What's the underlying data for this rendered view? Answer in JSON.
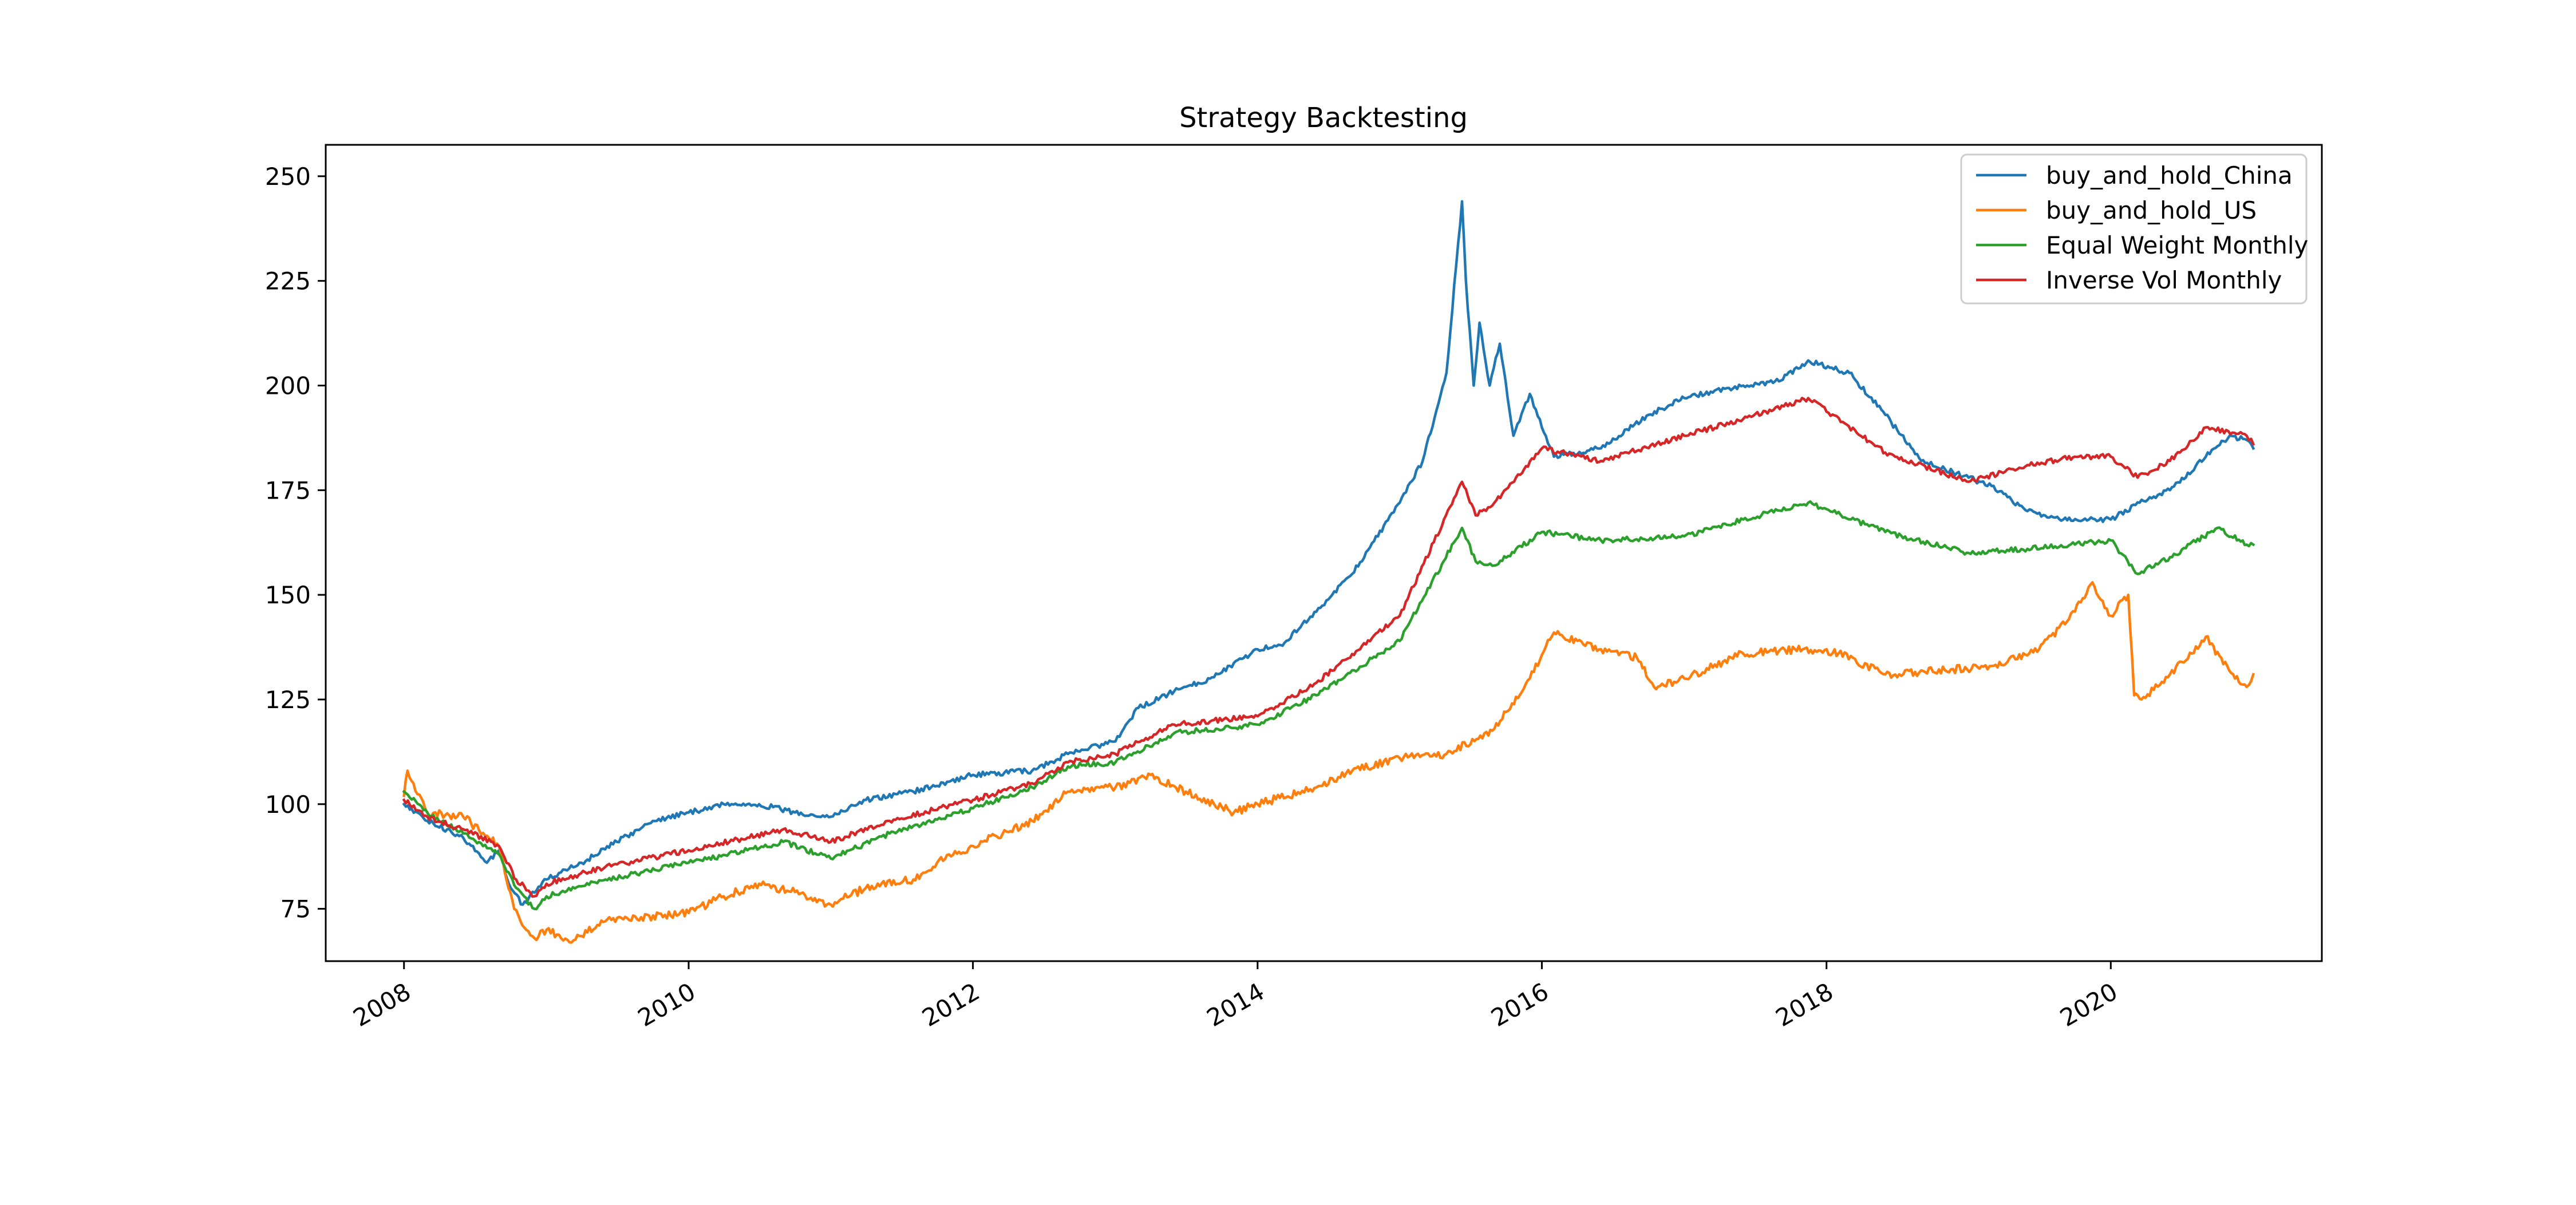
{
  "chart_data": {
    "type": "line",
    "title": "Strategy Backtesting",
    "xlabel": "",
    "ylabel": "",
    "x_range": [
      "2007-06-14",
      "2021-06-26"
    ],
    "ylim": [
      62.5,
      257.5
    ],
    "x_ticks": [
      "2008",
      "2010",
      "2012",
      "2014",
      "2016",
      "2018",
      "2020"
    ],
    "y_ticks": [
      "75",
      "100",
      "125",
      "150",
      "175",
      "200",
      "225",
      "250"
    ],
    "grid": false,
    "legend_position": "upper right",
    "series": [
      {
        "name": "buy_and_hold_China",
        "color": "#1f77b4",
        "points": [
          [
            "2008-01-01",
            100
          ],
          [
            "2008-03-01",
            96
          ],
          [
            "2008-06-01",
            92
          ],
          [
            "2008-08-01",
            86
          ],
          [
            "2008-09-01",
            89
          ],
          [
            "2008-10-01",
            80
          ],
          [
            "2008-11-01",
            76
          ],
          [
            "2009-01-01",
            82
          ],
          [
            "2009-04-01",
            86
          ],
          [
            "2009-07-01",
            91
          ],
          [
            "2009-10-01",
            96
          ],
          [
            "2010-01-01",
            98
          ],
          [
            "2010-04-01",
            100
          ],
          [
            "2010-07-01",
            100
          ],
          [
            "2010-10-01",
            98
          ],
          [
            "2011-01-01",
            97
          ],
          [
            "2011-04-01",
            101
          ],
          [
            "2011-08-01",
            103
          ],
          [
            "2012-01-01",
            107
          ],
          [
            "2012-06-01",
            108
          ],
          [
            "2012-09-01",
            112
          ],
          [
            "2013-01-01",
            115
          ],
          [
            "2013-03-01",
            123
          ],
          [
            "2013-06-01",
            127
          ],
          [
            "2013-09-01",
            130
          ],
          [
            "2014-01-01",
            137
          ],
          [
            "2014-03-01",
            138
          ],
          [
            "2014-06-01",
            146
          ],
          [
            "2014-09-01",
            155
          ],
          [
            "2015-01-01",
            172
          ],
          [
            "2015-03-01",
            182
          ],
          [
            "2015-05-01",
            203
          ],
          [
            "2015-06-10",
            244
          ],
          [
            "2015-06-20",
            225
          ],
          [
            "2015-07-10",
            200
          ],
          [
            "2015-07-25",
            215
          ],
          [
            "2015-08-20",
            200
          ],
          [
            "2015-09-15",
            210
          ],
          [
            "2015-10-20",
            188
          ],
          [
            "2015-12-01",
            198
          ],
          [
            "2016-02-01",
            183
          ],
          [
            "2016-06-01",
            185
          ],
          [
            "2016-10-01",
            193
          ],
          [
            "2017-01-01",
            197
          ],
          [
            "2017-06-01",
            200
          ],
          [
            "2017-09-01",
            201
          ],
          [
            "2017-11-15",
            206
          ],
          [
            "2018-03-01",
            203
          ],
          [
            "2018-06-01",
            193
          ],
          [
            "2018-09-01",
            182
          ],
          [
            "2019-01-01",
            178
          ],
          [
            "2019-03-01",
            176
          ],
          [
            "2019-06-01",
            170
          ],
          [
            "2019-09-01",
            168
          ],
          [
            "2020-01-01",
            168
          ],
          [
            "2020-03-15",
            172
          ],
          [
            "2020-06-01",
            175
          ],
          [
            "2020-09-01",
            183
          ],
          [
            "2020-11-01",
            188
          ],
          [
            "2020-12-15",
            187
          ],
          [
            "2021-01-01",
            185
          ]
        ]
      },
      {
        "name": "buy_and_hold_US",
        "color": "#ff7f0e",
        "points": [
          [
            "2008-01-01",
            102
          ],
          [
            "2008-01-10",
            108
          ],
          [
            "2008-03-01",
            98
          ],
          [
            "2008-06-01",
            97
          ],
          [
            "2008-09-01",
            90
          ],
          [
            "2008-10-10",
            75
          ],
          [
            "2008-11-10",
            70
          ],
          [
            "2008-12-01",
            68
          ],
          [
            "2009-01-01",
            70
          ],
          [
            "2009-03-01",
            67
          ],
          [
            "2009-06-01",
            72
          ],
          [
            "2009-09-01",
            73
          ],
          [
            "2010-01-01",
            74
          ],
          [
            "2010-04-01",
            78
          ],
          [
            "2010-07-01",
            81
          ],
          [
            "2010-10-01",
            79
          ],
          [
            "2011-01-01",
            76
          ],
          [
            "2011-04-01",
            80
          ],
          [
            "2011-08-01",
            82
          ],
          [
            "2011-10-01",
            86
          ],
          [
            "2012-01-01",
            90
          ],
          [
            "2012-06-01",
            96
          ],
          [
            "2012-09-01",
            103
          ],
          [
            "2013-01-01",
            104
          ],
          [
            "2013-04-01",
            107
          ],
          [
            "2013-07-01",
            103
          ],
          [
            "2013-11-01",
            98
          ],
          [
            "2014-01-01",
            100
          ],
          [
            "2014-06-01",
            104
          ],
          [
            "2014-09-01",
            108
          ],
          [
            "2015-01-01",
            111
          ],
          [
            "2015-05-01",
            112
          ],
          [
            "2015-09-01",
            118
          ],
          [
            "2015-12-01",
            130
          ],
          [
            "2016-02-01",
            141
          ],
          [
            "2016-06-01",
            137
          ],
          [
            "2016-09-01",
            135
          ],
          [
            "2016-10-15",
            128
          ],
          [
            "2017-01-01",
            130
          ],
          [
            "2017-06-01",
            136
          ],
          [
            "2017-11-01",
            137
          ],
          [
            "2018-02-01",
            136
          ],
          [
            "2018-06-01",
            131
          ],
          [
            "2018-11-01",
            132
          ],
          [
            "2019-03-01",
            133
          ],
          [
            "2019-07-01",
            137
          ],
          [
            "2019-10-01",
            146
          ],
          [
            "2019-11-15",
            153
          ],
          [
            "2020-01-01",
            145
          ],
          [
            "2020-02-15",
            150
          ],
          [
            "2020-03-01",
            126
          ],
          [
            "2020-03-20",
            125
          ],
          [
            "2020-06-01",
            131
          ],
          [
            "2020-09-01",
            140
          ],
          [
            "2020-11-15",
            130
          ],
          [
            "2020-12-15",
            128
          ],
          [
            "2021-01-01",
            131
          ]
        ]
      },
      {
        "name": "Equal Weight Monthly",
        "color": "#2ca02c",
        "points": [
          [
            "2008-01-01",
            103
          ],
          [
            "2008-03-01",
            98
          ],
          [
            "2008-06-01",
            93
          ],
          [
            "2008-09-01",
            88
          ],
          [
            "2008-10-15",
            80
          ],
          [
            "2008-12-01",
            75
          ],
          [
            "2009-01-01",
            78
          ],
          [
            "2009-06-01",
            82
          ],
          [
            "2010-01-01",
            86
          ],
          [
            "2010-06-01",
            89
          ],
          [
            "2010-09-01",
            91
          ],
          [
            "2011-01-01",
            87
          ],
          [
            "2011-06-01",
            93
          ],
          [
            "2012-01-01",
            99
          ],
          [
            "2012-06-01",
            104
          ],
          [
            "2012-09-01",
            109
          ],
          [
            "2013-01-01",
            110
          ],
          [
            "2013-06-01",
            117
          ],
          [
            "2014-01-01",
            119
          ],
          [
            "2014-06-01",
            126
          ],
          [
            "2015-01-01",
            139
          ],
          [
            "2015-06-10",
            166
          ],
          [
            "2015-07-15",
            158
          ],
          [
            "2015-09-01",
            157
          ],
          [
            "2016-01-01",
            165
          ],
          [
            "2016-06-01",
            163
          ],
          [
            "2017-01-01",
            164
          ],
          [
            "2017-06-01",
            168
          ],
          [
            "2017-11-15",
            172
          ],
          [
            "2018-06-01",
            165
          ],
          [
            "2019-01-01",
            160
          ],
          [
            "2019-06-01",
            161
          ],
          [
            "2019-10-01",
            162
          ],
          [
            "2020-01-01",
            163
          ],
          [
            "2020-03-10",
            155
          ],
          [
            "2020-06-01",
            159
          ],
          [
            "2020-10-01",
            166
          ],
          [
            "2020-12-15",
            162
          ],
          [
            "2021-01-01",
            162
          ]
        ]
      },
      {
        "name": "Inverse Vol Monthly",
        "color": "#d62728",
        "points": [
          [
            "2008-01-01",
            101
          ],
          [
            "2008-03-01",
            97
          ],
          [
            "2008-06-01",
            94
          ],
          [
            "2008-09-01",
            90
          ],
          [
            "2008-10-15",
            82
          ],
          [
            "2008-12-01",
            78
          ],
          [
            "2009-01-01",
            81
          ],
          [
            "2009-06-01",
            85
          ],
          [
            "2010-01-01",
            89
          ],
          [
            "2010-06-01",
            92
          ],
          [
            "2010-09-01",
            94
          ],
          [
            "2011-01-01",
            91
          ],
          [
            "2011-06-01",
            96
          ],
          [
            "2012-01-01",
            101
          ],
          [
            "2012-06-01",
            105
          ],
          [
            "2012-09-01",
            110
          ],
          [
            "2013-01-01",
            112
          ],
          [
            "2013-06-01",
            119
          ],
          [
            "2014-01-01",
            121
          ],
          [
            "2014-06-01",
            129
          ],
          [
            "2015-01-01",
            145
          ],
          [
            "2015-06-10",
            177
          ],
          [
            "2015-07-15",
            169
          ],
          [
            "2015-09-01",
            172
          ],
          [
            "2016-01-01",
            185
          ],
          [
            "2016-06-01",
            182
          ],
          [
            "2017-01-01",
            188
          ],
          [
            "2017-06-01",
            192
          ],
          [
            "2017-11-15",
            197
          ],
          [
            "2018-06-01",
            184
          ],
          [
            "2019-01-01",
            177
          ],
          [
            "2019-06-01",
            181
          ],
          [
            "2019-10-01",
            183
          ],
          [
            "2020-01-01",
            183
          ],
          [
            "2020-03-10",
            178
          ],
          [
            "2020-06-01",
            182
          ],
          [
            "2020-09-01",
            190
          ],
          [
            "2020-12-15",
            188
          ],
          [
            "2021-01-01",
            186
          ]
        ]
      }
    ]
  }
}
